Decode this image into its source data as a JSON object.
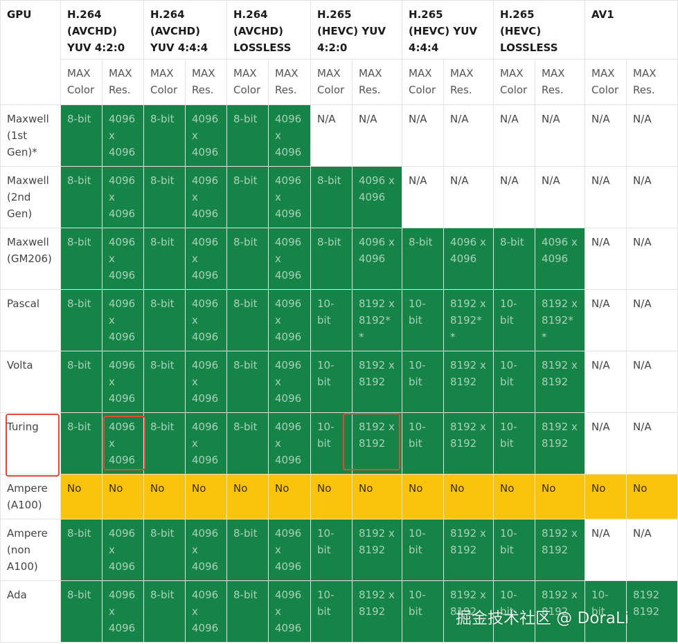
{
  "header": {
    "gpu_label": "GPU",
    "groups": [
      "H.264 (AVCHD) YUV 4:2:0",
      "H.264 (AVCHD) YUV 4:4:4",
      "H.264 (AVCHD) LOSSLESS",
      "H.265 (HEVC) YUV 4:2:0",
      "H.265 (HEVC) YUV 4:4:4",
      "H.265 (HEVC) LOSSLESS",
      "AV1"
    ],
    "sub_color": "MAX Color",
    "sub_res": "MAX Res."
  },
  "rows": [
    {
      "gpu": "Maxwell (1st Gen)*",
      "cells": [
        {
          "v": "8-bit",
          "s": "green"
        },
        {
          "v": "4096 x 4096",
          "s": "green"
        },
        {
          "v": "8-bit",
          "s": "green"
        },
        {
          "v": "4096 x 4096",
          "s": "green"
        },
        {
          "v": "8-bit",
          "s": "green"
        },
        {
          "v": "4096 x 4096",
          "s": "green"
        },
        {
          "v": "N/A",
          "s": "na"
        },
        {
          "v": "N/A",
          "s": "na"
        },
        {
          "v": "N/A",
          "s": "na"
        },
        {
          "v": "N/A",
          "s": "na"
        },
        {
          "v": "N/A",
          "s": "na"
        },
        {
          "v": "N/A",
          "s": "na"
        },
        {
          "v": "N/A",
          "s": "na"
        },
        {
          "v": "N/A",
          "s": "na"
        }
      ]
    },
    {
      "gpu": "Maxwell (2nd Gen)",
      "cells": [
        {
          "v": "8-bit",
          "s": "green"
        },
        {
          "v": "4096 x 4096",
          "s": "green"
        },
        {
          "v": "8-bit",
          "s": "green"
        },
        {
          "v": "4096 x 4096",
          "s": "green"
        },
        {
          "v": "8-bit",
          "s": "green"
        },
        {
          "v": "4096 x 4096",
          "s": "green"
        },
        {
          "v": "8-bit",
          "s": "green"
        },
        {
          "v": "4096 x 4096",
          "s": "green"
        },
        {
          "v": "N/A",
          "s": "na"
        },
        {
          "v": "N/A",
          "s": "na"
        },
        {
          "v": "N/A",
          "s": "na"
        },
        {
          "v": "N/A",
          "s": "na"
        },
        {
          "v": "N/A",
          "s": "na"
        },
        {
          "v": "N/A",
          "s": "na"
        }
      ]
    },
    {
      "gpu": "Maxwell (GM206)",
      "cells": [
        {
          "v": "8-bit",
          "s": "green"
        },
        {
          "v": "4096 x 4096",
          "s": "green"
        },
        {
          "v": "8-bit",
          "s": "green"
        },
        {
          "v": "4096 x 4096",
          "s": "green"
        },
        {
          "v": "8-bit",
          "s": "green"
        },
        {
          "v": "4096 x 4096",
          "s": "green"
        },
        {
          "v": "8-bit",
          "s": "green"
        },
        {
          "v": "4096 x 4096",
          "s": "green"
        },
        {
          "v": "8-bit",
          "s": "green"
        },
        {
          "v": "4096 x 4096",
          "s": "green"
        },
        {
          "v": "8-bit",
          "s": "green"
        },
        {
          "v": "4096 x 4096",
          "s": "green"
        },
        {
          "v": "N/A",
          "s": "na"
        },
        {
          "v": "N/A",
          "s": "na"
        }
      ]
    },
    {
      "gpu": "Pascal",
      "cells": [
        {
          "v": "8-bit",
          "s": "green"
        },
        {
          "v": "4096 x 4096",
          "s": "green"
        },
        {
          "v": "8-bit",
          "s": "green"
        },
        {
          "v": "4096 x 4096",
          "s": "green"
        },
        {
          "v": "8-bit",
          "s": "green"
        },
        {
          "v": "4096 x 4096",
          "s": "green"
        },
        {
          "v": "10-bit",
          "s": "green"
        },
        {
          "v": "8192 x 8192**",
          "s": "green"
        },
        {
          "v": "10-bit",
          "s": "green"
        },
        {
          "v": "8192 x 8192**",
          "s": "green"
        },
        {
          "v": "10-bit",
          "s": "green"
        },
        {
          "v": "8192 x 8192**",
          "s": "green"
        },
        {
          "v": "N/A",
          "s": "na"
        },
        {
          "v": "N/A",
          "s": "na"
        }
      ]
    },
    {
      "gpu": "Volta",
      "cells": [
        {
          "v": "8-bit",
          "s": "green"
        },
        {
          "v": "4096 x 4096",
          "s": "green"
        },
        {
          "v": "8-bit",
          "s": "green"
        },
        {
          "v": "4096 x 4096",
          "s": "green"
        },
        {
          "v": "8-bit",
          "s": "green"
        },
        {
          "v": "4096 x 4096",
          "s": "green"
        },
        {
          "v": "10-bit",
          "s": "green"
        },
        {
          "v": "8192 x 8192",
          "s": "green"
        },
        {
          "v": "10-bit",
          "s": "green"
        },
        {
          "v": "8192 x 8192",
          "s": "green"
        },
        {
          "v": "10-bit",
          "s": "green"
        },
        {
          "v": "8192 x 8192",
          "s": "green"
        },
        {
          "v": "N/A",
          "s": "na"
        },
        {
          "v": "N/A",
          "s": "na"
        }
      ]
    },
    {
      "gpu": "Turing",
      "cells": [
        {
          "v": "8-bit",
          "s": "green"
        },
        {
          "v": "4096 x 4096",
          "s": "green"
        },
        {
          "v": "8-bit",
          "s": "green"
        },
        {
          "v": "4096 x 4096",
          "s": "green"
        },
        {
          "v": "8-bit",
          "s": "green"
        },
        {
          "v": "4096 x 4096",
          "s": "green"
        },
        {
          "v": "10-bit",
          "s": "green"
        },
        {
          "v": "8192 x 8192",
          "s": "green"
        },
        {
          "v": "10-bit",
          "s": "green"
        },
        {
          "v": "8192 x 8192",
          "s": "green"
        },
        {
          "v": "10-bit",
          "s": "green"
        },
        {
          "v": "8192 x 8192",
          "s": "green"
        },
        {
          "v": "N/A",
          "s": "na"
        },
        {
          "v": "N/A",
          "s": "na"
        }
      ]
    },
    {
      "gpu": "Ampere (A100)",
      "cells": [
        {
          "v": "No",
          "s": "yellow"
        },
        {
          "v": "No",
          "s": "yellow"
        },
        {
          "v": "No",
          "s": "yellow"
        },
        {
          "v": "No",
          "s": "yellow"
        },
        {
          "v": "No",
          "s": "yellow"
        },
        {
          "v": "No",
          "s": "yellow"
        },
        {
          "v": "No",
          "s": "yellow"
        },
        {
          "v": "No",
          "s": "yellow"
        },
        {
          "v": "No",
          "s": "yellow"
        },
        {
          "v": "No",
          "s": "yellow"
        },
        {
          "v": "No",
          "s": "yellow"
        },
        {
          "v": "No",
          "s": "yellow"
        },
        {
          "v": "No",
          "s": "yellow"
        },
        {
          "v": "No",
          "s": "yellow"
        }
      ]
    },
    {
      "gpu": "Ampere (non A100)",
      "cells": [
        {
          "v": "8-bit",
          "s": "green"
        },
        {
          "v": "4096 x 4096",
          "s": "green"
        },
        {
          "v": "8-bit",
          "s": "green"
        },
        {
          "v": "4096 x 4096",
          "s": "green"
        },
        {
          "v": "8-bit",
          "s": "green"
        },
        {
          "v": "4096 x 4096",
          "s": "green"
        },
        {
          "v": "10-bit",
          "s": "green"
        },
        {
          "v": "8192 x 8192",
          "s": "green"
        },
        {
          "v": "10-bit",
          "s": "green"
        },
        {
          "v": "8192 x 8192",
          "s": "green"
        },
        {
          "v": "10-bit",
          "s": "green"
        },
        {
          "v": "8192 x 8192",
          "s": "green"
        },
        {
          "v": "N/A",
          "s": "na"
        },
        {
          "v": "N/A",
          "s": "na"
        }
      ]
    },
    {
      "gpu": "Ada",
      "cells": [
        {
          "v": "8-bit",
          "s": "green"
        },
        {
          "v": "4096 x 4096",
          "s": "green"
        },
        {
          "v": "8-bit",
          "s": "green"
        },
        {
          "v": "4096 x 4096",
          "s": "green"
        },
        {
          "v": "8-bit",
          "s": "green"
        },
        {
          "v": "4096 x 4096",
          "s": "green"
        },
        {
          "v": "10-bit",
          "s": "green"
        },
        {
          "v": "8192 x 8192",
          "s": "green"
        },
        {
          "v": "10-bit",
          "s": "green"
        },
        {
          "v": "8192 x 8192",
          "s": "green"
        },
        {
          "v": "10-bit",
          "s": "green"
        },
        {
          "v": "8192 x 8192",
          "s": "green"
        },
        {
          "v": "10-bit",
          "s": "green"
        },
        {
          "v": "8192 8192",
          "s": "green"
        }
      ]
    }
  ],
  "colors": {
    "supported": "#168447",
    "unsupported": "#fbc30b",
    "highlight": "#e04a3a"
  },
  "watermark": "掘金技术社区 @ DoraLi"
}
